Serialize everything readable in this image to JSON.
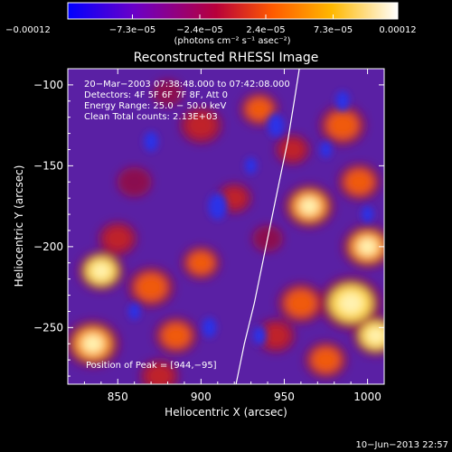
{
  "chart_data": {
    "type": "heatmap",
    "title": "Reconstructed RHESSI Image",
    "xlabel": "Heliocentric X (arcsec)",
    "ylabel": "Heliocentric Y (arcsec)",
    "xlim": [
      820,
      1010
    ],
    "ylim": [
      -285,
      -90
    ],
    "x_ticks": [
      850,
      900,
      950,
      1000
    ],
    "x_tick_labels": [
      "850",
      "900",
      "950",
      "1000"
    ],
    "y_ticks": [
      -100,
      -150,
      -200,
      -250
    ],
    "y_tick_labels": [
      "−100",
      "−150",
      "−200",
      "−250"
    ],
    "colorbar": {
      "min": -0.00012,
      "max": 0.00012,
      "tick_values": [
        -0.00012,
        -7.3e-05,
        -2.4e-05,
        2.4e-05,
        7.3e-05,
        0.00012
      ],
      "tick_labels": [
        "−0.00012",
        "−7.3e−05",
        "−2.4e−05",
        "2.4e−05",
        "7.3e−05",
        "0.00012"
      ],
      "unit_label": "(photons cm⁻² s⁻¹ asec⁻²)",
      "colors": [
        "#0000ff",
        "#6a00c8",
        "#b8003a",
        "#ff5a00",
        "#ffb800",
        "#ffffff"
      ]
    },
    "annotations": [
      "20−Mar−2003 07:38:48.000 to 07:42:08.000",
      "Detectors: 4F 5F 6F 7F 8F, Att 0",
      "Energy Range: 25.0 − 50.0 keV",
      "Clean     Total counts: 2.13E+03"
    ],
    "peak_label": "Position of Peak = [944,−95]",
    "limb_curve": {
      "x": [
        921,
        926,
        932,
        937,
        942,
        947,
        952,
        956,
        959
      ],
      "y": [
        -285,
        -260,
        -235,
        -210,
        -185,
        -160,
        -135,
        -110,
        -90
      ]
    },
    "emission_blobs": [
      {
        "x": 840,
        "y": -215,
        "v": 1.0,
        "r": 12
      },
      {
        "x": 835,
        "y": -260,
        "v": 0.8,
        "r": 14
      },
      {
        "x": 850,
        "y": -195,
        "v": 0.5,
        "r": 10
      },
      {
        "x": 870,
        "y": -225,
        "v": 0.7,
        "r": 12
      },
      {
        "x": 900,
        "y": -210,
        "v": 0.6,
        "r": 10
      },
      {
        "x": 885,
        "y": -255,
        "v": 0.6,
        "r": 11
      },
      {
        "x": 875,
        "y": -280,
        "v": 0.5,
        "r": 10
      },
      {
        "x": 860,
        "y": -160,
        "v": 0.4,
        "r": 9
      },
      {
        "x": 900,
        "y": -125,
        "v": 0.5,
        "r": 11
      },
      {
        "x": 935,
        "y": -115,
        "v": 0.6,
        "r": 10
      },
      {
        "x": 880,
        "y": -105,
        "v": 0.3,
        "r": 8
      },
      {
        "x": 920,
        "y": -170,
        "v": 0.5,
        "r": 9
      },
      {
        "x": 945,
        "y": -255,
        "v": 0.5,
        "r": 10
      },
      {
        "x": 940,
        "y": -195,
        "v": 0.3,
        "r": 8
      },
      {
        "x": 965,
        "y": -175,
        "v": 0.8,
        "r": 13
      },
      {
        "x": 960,
        "y": -235,
        "v": 0.7,
        "r": 12
      },
      {
        "x": 990,
        "y": -235,
        "v": 1.0,
        "r": 16
      },
      {
        "x": 1000,
        "y": -200,
        "v": 0.8,
        "r": 13
      },
      {
        "x": 995,
        "y": -160,
        "v": 0.7,
        "r": 11
      },
      {
        "x": 985,
        "y": -125,
        "v": 0.6,
        "r": 12
      },
      {
        "x": 975,
        "y": -270,
        "v": 0.6,
        "r": 11
      },
      {
        "x": 955,
        "y": -140,
        "v": 0.5,
        "r": 9
      },
      {
        "x": 1005,
        "y": -255,
        "v": 0.9,
        "r": 12
      }
    ],
    "negative_spots": [
      {
        "x": 910,
        "y": -175,
        "r": 8
      },
      {
        "x": 935,
        "y": -255,
        "r": 6
      },
      {
        "x": 945,
        "y": -125,
        "r": 7
      },
      {
        "x": 905,
        "y": -250,
        "r": 6
      },
      {
        "x": 870,
        "y": -135,
        "r": 6
      },
      {
        "x": 985,
        "y": -110,
        "r": 6
      },
      {
        "x": 930,
        "y": -150,
        "r": 5
      },
      {
        "x": 860,
        "y": -240,
        "r": 5
      },
      {
        "x": 975,
        "y": -140,
        "r": 5
      },
      {
        "x": 1000,
        "y": -180,
        "r": 5
      }
    ]
  },
  "footer": {
    "date": "10−Jun−2013 22:57"
  }
}
